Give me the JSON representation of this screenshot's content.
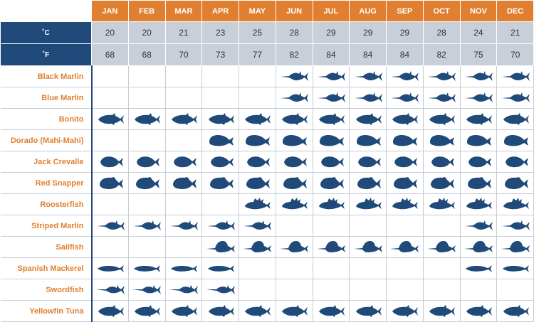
{
  "months": [
    "JAN",
    "FEB",
    "MAR",
    "APR",
    "MAY",
    "JUN",
    "JUL",
    "AUG",
    "SEP",
    "OCT",
    "NOV",
    "DEC"
  ],
  "temperature": {
    "celsius_label": "˚C",
    "fahrenheit_label": "˚F",
    "celsius": [
      "20",
      "20",
      "21",
      "23",
      "25",
      "28",
      "29",
      "29",
      "29",
      "28",
      "24",
      "21"
    ],
    "fahrenheit": [
      "68",
      "68",
      "70",
      "73",
      "77",
      "82",
      "84",
      "84",
      "84",
      "82",
      "75",
      "70"
    ]
  },
  "colors": {
    "accent_orange": "#e07f2f",
    "navy": "#1f4a79",
    "temp_cell": "#c9cfd9"
  },
  "fish": [
    {
      "name": "Black Marlin",
      "icon": "marlin-icon",
      "months": [
        0,
        0,
        0,
        0,
        0,
        1,
        1,
        1,
        1,
        1,
        1,
        1
      ]
    },
    {
      "name": "Blue Marlin",
      "icon": "marlin-icon",
      "months": [
        0,
        0,
        0,
        0,
        0,
        1,
        1,
        1,
        1,
        1,
        1,
        1
      ]
    },
    {
      "name": "Bonito",
      "icon": "tuna-icon",
      "months": [
        1,
        1,
        1,
        1,
        1,
        1,
        1,
        1,
        1,
        1,
        1,
        1
      ]
    },
    {
      "name": "Dorado (Mahi-Mahi)",
      "icon": "dorado-icon",
      "months": [
        0,
        0,
        0,
        1,
        1,
        1,
        1,
        1,
        1,
        1,
        1,
        1
      ]
    },
    {
      "name": "Jack Crevalle",
      "icon": "jack-icon",
      "months": [
        1,
        1,
        1,
        1,
        1,
        1,
        1,
        1,
        1,
        1,
        1,
        1
      ]
    },
    {
      "name": "Red Snapper",
      "icon": "snapper-icon",
      "months": [
        1,
        1,
        1,
        1,
        1,
        1,
        1,
        1,
        1,
        1,
        1,
        1
      ]
    },
    {
      "name": "Roosterfish",
      "icon": "roosterfish-icon",
      "months": [
        0,
        0,
        0,
        0,
        1,
        1,
        1,
        1,
        1,
        1,
        1,
        1
      ]
    },
    {
      "name": "Striped Marlin",
      "icon": "marlin-icon",
      "months": [
        1,
        1,
        1,
        1,
        1,
        0,
        0,
        0,
        0,
        0,
        1,
        1
      ]
    },
    {
      "name": "Sailfish",
      "icon": "sailfish-icon",
      "months": [
        0,
        0,
        0,
        1,
        1,
        1,
        1,
        1,
        1,
        1,
        1,
        1
      ]
    },
    {
      "name": "Spanish Mackerel",
      "icon": "mackerel-icon",
      "months": [
        1,
        1,
        1,
        1,
        0,
        0,
        0,
        0,
        0,
        0,
        1,
        1
      ]
    },
    {
      "name": "Swordfish",
      "icon": "swordfish-icon",
      "months": [
        1,
        1,
        1,
        1,
        0,
        0,
        0,
        0,
        0,
        0,
        0,
        0
      ]
    },
    {
      "name": "Yellowfin Tuna",
      "icon": "tuna-icon",
      "months": [
        1,
        1,
        1,
        1,
        1,
        1,
        1,
        1,
        1,
        1,
        1,
        1
      ]
    }
  ]
}
